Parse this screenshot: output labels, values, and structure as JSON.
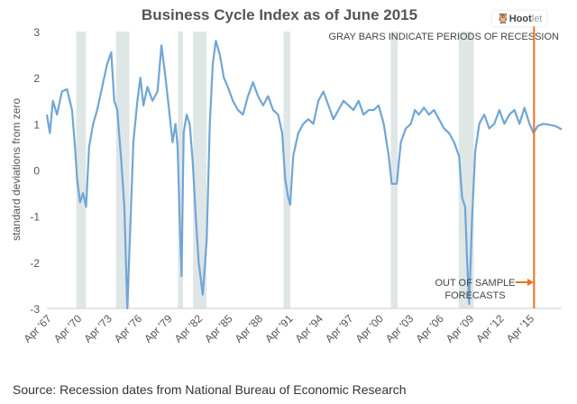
{
  "chart_data": {
    "type": "line",
    "title": "Business Cycle Index as of June 2015",
    "ylabel": "standard deviations from zero",
    "xlabel": "",
    "ylim": [
      -3,
      3
    ],
    "xlim": [
      1967.0,
      2018.2
    ],
    "yticks": [
      3,
      2,
      1,
      0,
      -1,
      -2,
      -3
    ],
    "xticks": [
      {
        "x": 1967.25,
        "label": "Apr '67"
      },
      {
        "x": 1970.25,
        "label": "Apr '70"
      },
      {
        "x": 1973.25,
        "label": "Apr '73"
      },
      {
        "x": 1976.25,
        "label": "Apr '76"
      },
      {
        "x": 1979.25,
        "label": "Apr '79"
      },
      {
        "x": 1982.25,
        "label": "Apr '82"
      },
      {
        "x": 1985.25,
        "label": "Apr '85"
      },
      {
        "x": 1988.25,
        "label": "Apr '88"
      },
      {
        "x": 1991.25,
        "label": "Apr '91"
      },
      {
        "x": 1994.25,
        "label": "Apr '94"
      },
      {
        "x": 1997.25,
        "label": "Apr '97"
      },
      {
        "x": 2000.25,
        "label": "Apr '00"
      },
      {
        "x": 2003.25,
        "label": "Apr '03"
      },
      {
        "x": 2006.25,
        "label": "Apr '06"
      },
      {
        "x": 2009.25,
        "label": "Apr '09"
      },
      {
        "x": 2012.25,
        "label": "Apr '12"
      },
      {
        "x": 2015.25,
        "label": "Apr '15"
      }
    ],
    "recessions": [
      [
        1969.92,
        1970.88
      ],
      [
        1973.88,
        1975.21
      ],
      [
        1980.04,
        1980.54
      ],
      [
        1981.54,
        1982.88
      ],
      [
        1990.54,
        1991.21
      ],
      [
        2001.21,
        2001.88
      ],
      [
        2007.96,
        2009.46
      ]
    ],
    "forecast_start": 2015.45,
    "series": [
      {
        "name": "Business Cycle Index",
        "color": "#6fa6d6",
        "x": [
          1967.0,
          1967.3,
          1967.6,
          1968,
          1968.5,
          1969,
          1969.5,
          1969.8,
          1970.0,
          1970.3,
          1970.6,
          1970.9,
          1971.2,
          1971.6,
          1972,
          1972.5,
          1973,
          1973.4,
          1973.7,
          1974,
          1974.4,
          1974.7,
          1975.0,
          1975.3,
          1975.6,
          1976,
          1976.3,
          1976.6,
          1977,
          1977.5,
          1978,
          1978.4,
          1978.8,
          1979.2,
          1979.5,
          1979.8,
          1980.0,
          1980.2,
          1980.4,
          1980.6,
          1980.9,
          1981.2,
          1981.5,
          1981.8,
          1982.1,
          1982.5,
          1982.9,
          1983.2,
          1983.5,
          1983.8,
          1984.2,
          1984.6,
          1985,
          1985.5,
          1986,
          1986.5,
          1987,
          1987.5,
          1988,
          1988.5,
          1989,
          1989.5,
          1990,
          1990.4,
          1990.7,
          1991.0,
          1991.2,
          1991.5,
          1992,
          1992.5,
          1993,
          1993.5,
          1994,
          1994.5,
          1995,
          1995.5,
          1996,
          1996.5,
          1997,
          1997.5,
          1998,
          1998.5,
          1999,
          1999.5,
          2000,
          2000.5,
          2001.0,
          2001.3,
          2001.8,
          2002.2,
          2002.7,
          2003.2,
          2003.6,
          2004,
          2004.5,
          2005,
          2005.5,
          2006,
          2006.5,
          2007,
          2007.5,
          2008,
          2008.3,
          2008.6,
          2008.8,
          2009.0,
          2009.3,
          2009.6,
          2010,
          2010.5,
          2011,
          2011.5,
          2012,
          2012.5,
          2013,
          2013.5,
          2014,
          2014.5,
          2015,
          2015.4,
          2015.8,
          2016.4,
          2017,
          2017.6,
          2018.2
        ],
        "y": [
          1.2,
          0.8,
          1.5,
          1.2,
          1.7,
          1.75,
          1.3,
          0.5,
          -0.2,
          -0.7,
          -0.5,
          -0.8,
          0.5,
          1.0,
          1.3,
          1.8,
          2.3,
          2.55,
          1.5,
          1.3,
          0.2,
          -0.8,
          -3.0,
          -1.2,
          0.6,
          1.5,
          2.0,
          1.4,
          1.8,
          1.5,
          1.7,
          2.7,
          2.0,
          1.2,
          0.6,
          1.0,
          0.5,
          -1.0,
          -2.3,
          0.8,
          1.2,
          1.0,
          0.2,
          -1.0,
          -2.0,
          -2.7,
          -1.5,
          1.0,
          2.3,
          2.8,
          2.5,
          2.0,
          1.8,
          1.5,
          1.3,
          1.2,
          1.6,
          1.9,
          1.6,
          1.4,
          1.6,
          1.3,
          1.2,
          0.8,
          -0.2,
          -0.6,
          -0.75,
          0.3,
          0.8,
          1.0,
          1.1,
          1.0,
          1.5,
          1.7,
          1.4,
          1.1,
          1.3,
          1.5,
          1.4,
          1.3,
          1.5,
          1.2,
          1.3,
          1.3,
          1.4,
          1.0,
          0.3,
          -0.3,
          -0.3,
          0.6,
          0.9,
          1.0,
          1.3,
          1.2,
          1.35,
          1.2,
          1.3,
          1.1,
          0.9,
          0.8,
          0.6,
          0.3,
          -0.6,
          -0.8,
          -2.0,
          -2.9,
          -1.0,
          0.4,
          1.0,
          1.2,
          0.9,
          1.0,
          1.3,
          1.0,
          1.2,
          1.3,
          1.0,
          1.35,
          1.0,
          0.8,
          0.95,
          1.0,
          0.98,
          0.95,
          0.88
        ]
      }
    ],
    "annotations": {
      "recession_note": "GRAY BARS INDICATE PERIODS OF RECESSION",
      "forecast_line1": "OUT OF SAMPLE",
      "forecast_line2": "FORECASTS"
    },
    "colors": {
      "recession": "#dfe6e6",
      "forecast": "#e8731e",
      "line": "#6fa6d6"
    }
  },
  "source": "Source: Recession dates from National Bureau of Economic Research",
  "watermark": {
    "brand": "Hoot",
    "brand_suffix": "let"
  }
}
